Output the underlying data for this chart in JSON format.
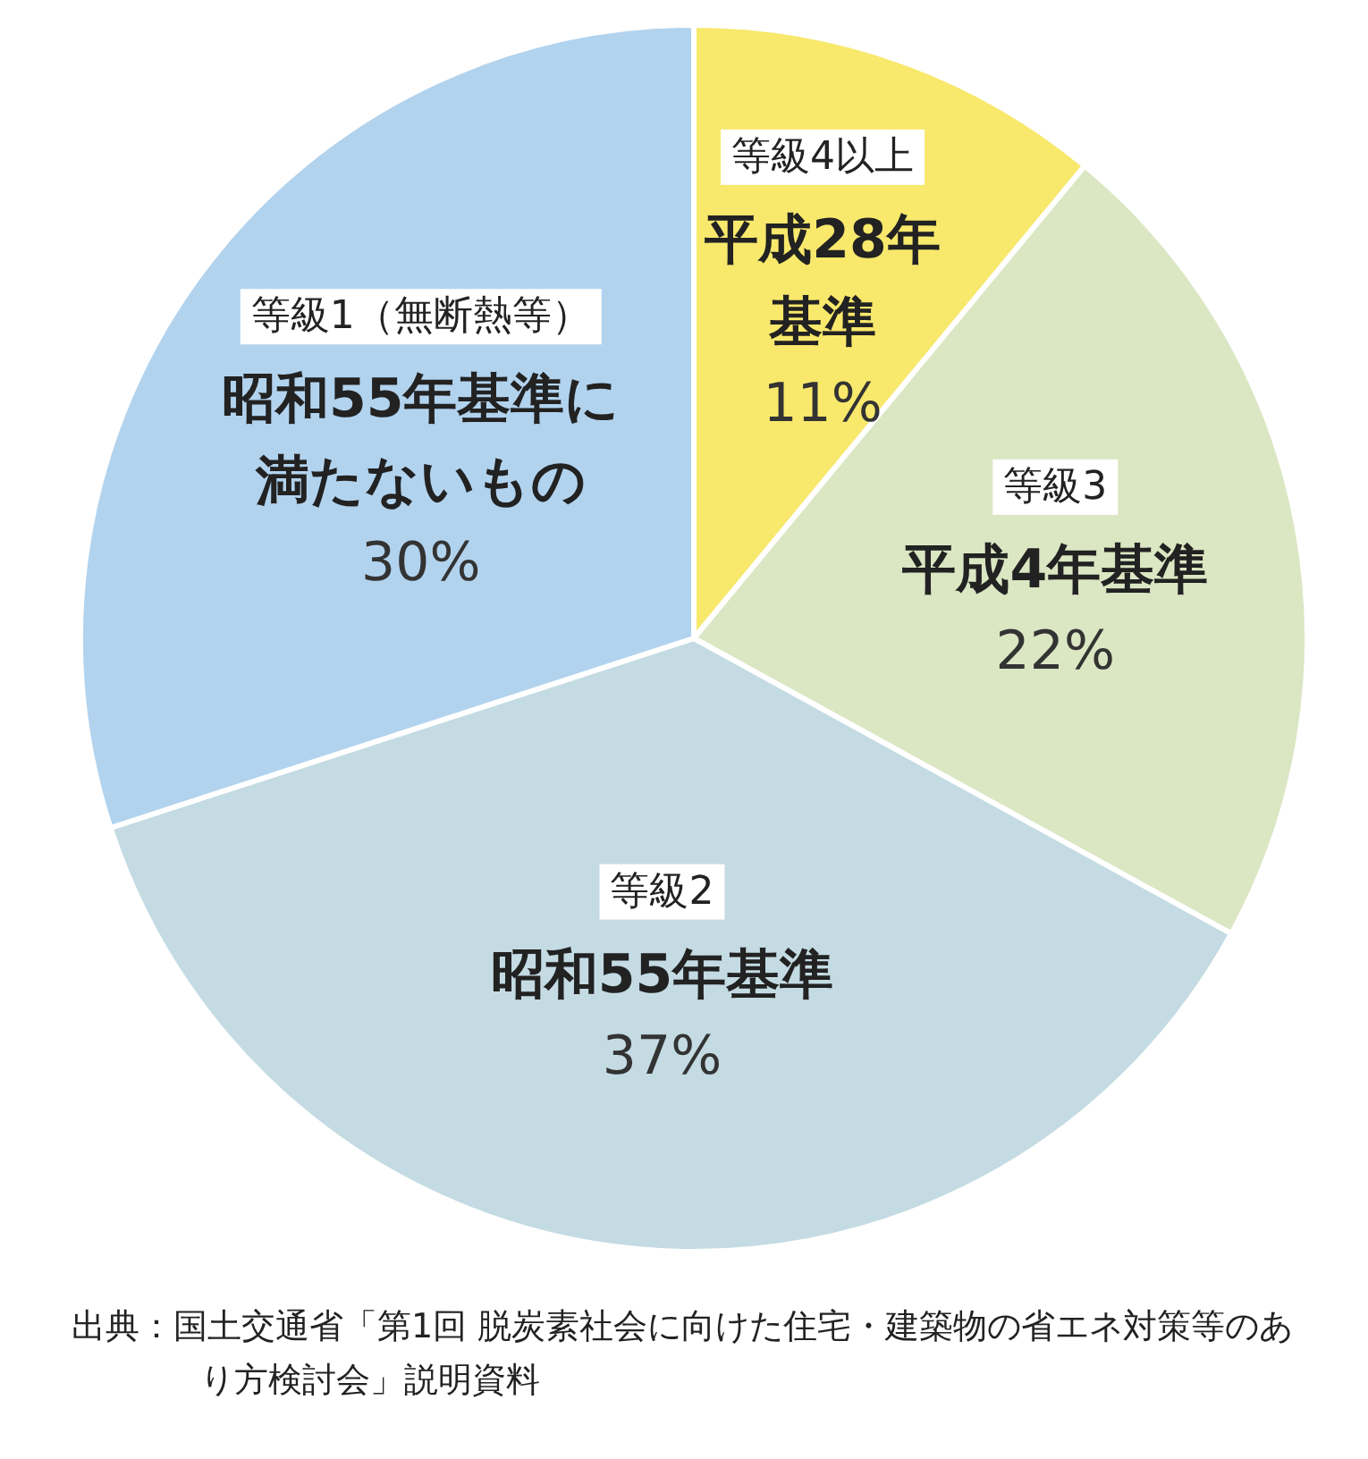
{
  "chart_data": {
    "type": "pie",
    "categories": [
      "等級4以上",
      "等級3",
      "等級2",
      "等級1（無断熱等）"
    ],
    "values": [
      11,
      22,
      37,
      30
    ],
    "value_labels": [
      "11%",
      "22%",
      "37%",
      "30%"
    ],
    "colors": [
      "#f8e86c",
      "#dbe6c3",
      "#c4dbe3",
      "#b2d3ee"
    ],
    "annotations": [
      {
        "text": "平成28年基準",
        "x": "等級4以上"
      },
      {
        "text": "平成4年基準",
        "x": "等級3"
      },
      {
        "text": "昭和55年基準",
        "x": "等級2"
      },
      {
        "text": "昭和55年基準に満たないもの",
        "x": "等級1（無断熱等）"
      },
      "出典：国土交通省「第1回 脱炭素社会に向けた住宅・建築物の省エネ対策等のあり方検討会」説明資料"
    ]
  }
}
